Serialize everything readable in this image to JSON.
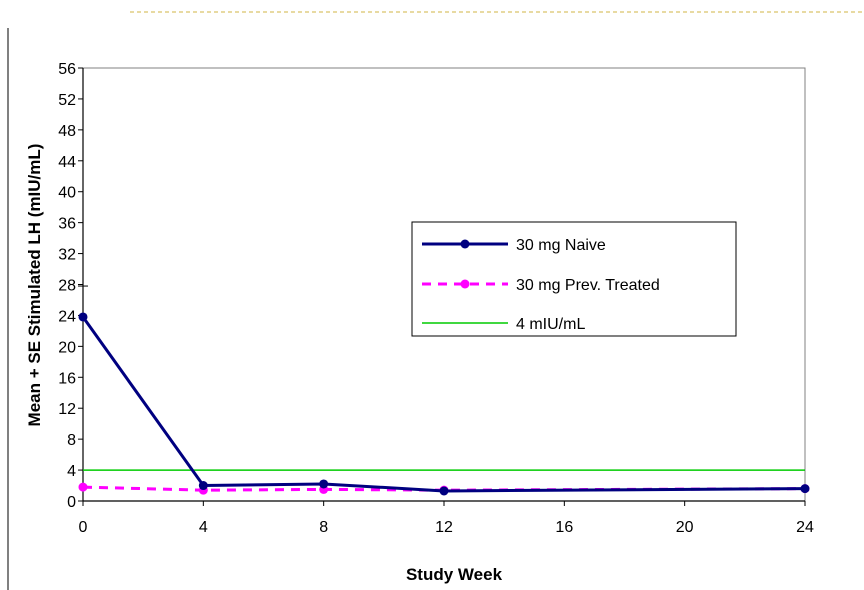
{
  "chart_data": {
    "type": "line",
    "xlabel": "Study Week",
    "ylabel": "Mean + SE Stimulated LH (mIU/mL)",
    "x_ticks": [
      0,
      4,
      8,
      12,
      16,
      20,
      24
    ],
    "y_ticks": [
      0,
      4,
      8,
      12,
      16,
      20,
      24,
      28,
      32,
      36,
      40,
      44,
      48,
      52,
      56
    ],
    "xlim": [
      0,
      24
    ],
    "ylim": [
      0,
      56
    ],
    "grid": false,
    "legend_position": "center-right",
    "series": [
      {
        "name": "30 mg Naive",
        "style": "solid-marker",
        "color": "#000080",
        "x": [
          0,
          4,
          8,
          12,
          24
        ],
        "y": [
          23.8,
          2.0,
          2.2,
          1.3,
          1.6
        ],
        "error_upper": [
          27.8,
          null,
          null,
          null,
          null
        ]
      },
      {
        "name": "30 mg Prev. Treated",
        "style": "dashed-marker",
        "color": "#ff00ff",
        "x": [
          0,
          4,
          8,
          12,
          24
        ],
        "y": [
          1.8,
          1.4,
          1.5,
          1.4,
          1.6
        ]
      },
      {
        "name": "4 mIU/mL",
        "style": "reference-line",
        "color": "#00cc00",
        "x": [
          0,
          24
        ],
        "y": [
          4,
          4
        ]
      }
    ]
  }
}
